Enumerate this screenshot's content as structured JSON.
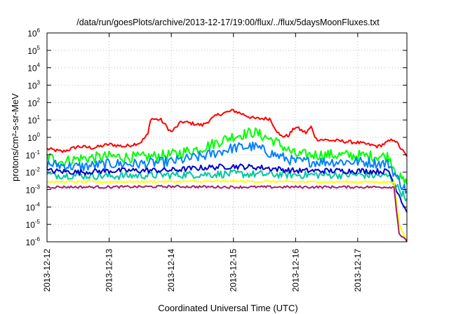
{
  "chart_data": {
    "type": "line",
    "title": "/data/run/goesPlots/archive/2013-12-17/19:00/flux/../flux/5daysMoonFluxes.txt",
    "xlabel": "Coordinated Universal Time (UTC)",
    "ylabel": "protons/cm²-s-sr-MeV",
    "x_scale": "date",
    "x_range": [
      "2013-12-12",
      "2013-12-17T19:00"
    ],
    "x_ticks": [
      "2013-12-12",
      "2013-12-13",
      "2013-12-14",
      "2013-12-15",
      "2013-12-16",
      "2013-12-17"
    ],
    "y_scale": "log",
    "y_range": [
      1e-06,
      1000000.0
    ],
    "y_ticks": [
      -6,
      -5,
      -4,
      -3,
      -2,
      -1,
      0,
      1,
      2,
      3,
      4,
      5,
      6
    ],
    "y_tick_base": "10",
    "grid": true,
    "grid_style": "dotted",
    "series": [
      {
        "color": "#ff0000",
        "x": [
          "2013-12-12T00:00",
          "2013-12-12T06:00",
          "2013-12-12T12:00",
          "2013-12-12T18:00",
          "2013-12-13T00:00",
          "2013-12-13T06:00",
          "2013-12-13T12:00",
          "2013-12-13T15:00",
          "2013-12-13T16:00",
          "2013-12-13T20:00",
          "2013-12-14T00:00",
          "2013-12-14T04:00",
          "2013-12-14T12:00",
          "2013-12-14T18:00",
          "2013-12-15T00:00",
          "2013-12-15T08:00",
          "2013-12-15T14:00",
          "2013-12-15T18:00",
          "2013-12-15T21:00",
          "2013-12-16T00:00",
          "2013-12-16T04:00",
          "2013-12-16T06:00",
          "2013-12-16T08:00",
          "2013-12-16T12:00",
          "2013-12-16T18:00",
          "2013-12-17T00:00",
          "2013-12-17T08:00",
          "2013-12-17T14:00",
          "2013-12-17T19:00"
        ],
        "y": [
          0.22,
          0.15,
          0.3,
          0.25,
          0.4,
          0.3,
          0.5,
          1.5,
          12,
          10,
          2,
          8,
          5,
          20,
          35,
          12,
          12,
          1.2,
          1.2,
          4,
          1.8,
          4,
          0.8,
          0.7,
          0.6,
          0.5,
          0.3,
          0.8,
          0.08
        ]
      },
      {
        "color": "#00ff00",
        "x": [
          "2013-12-12T00:00",
          "2013-12-12T06:00",
          "2013-12-12T12:00",
          "2013-12-13T00:00",
          "2013-12-13T12:00",
          "2013-12-14T00:00",
          "2013-12-14T12:00",
          "2013-12-15T00:00",
          "2013-12-15T08:00",
          "2013-12-15T16:00",
          "2013-12-16T00:00",
          "2013-12-16T12:00",
          "2013-12-17T00:00",
          "2013-12-17T12:00",
          "2013-12-17T16:00",
          "2013-12-17T19:00"
        ],
        "y": [
          0.08,
          0.04,
          0.06,
          0.08,
          0.07,
          0.1,
          0.25,
          1.2,
          2,
          0.6,
          0.1,
          0.1,
          0.09,
          0.08,
          0.005,
          0.002
        ]
      },
      {
        "color": "#0080ff",
        "x": [
          "2013-12-12T00:00",
          "2013-12-12T12:00",
          "2013-12-13T00:00",
          "2013-12-13T12:00",
          "2013-12-14T00:00",
          "2013-12-14T12:00",
          "2013-12-15T00:00",
          "2013-12-15T08:00",
          "2013-12-15T16:00",
          "2013-12-16T00:00",
          "2013-12-16T12:00",
          "2013-12-17T00:00",
          "2013-12-17T12:00",
          "2013-12-17T16:00",
          "2013-12-17T19:00"
        ],
        "y": [
          0.03,
          0.02,
          0.03,
          0.03,
          0.04,
          0.08,
          0.25,
          0.3,
          0.1,
          0.04,
          0.04,
          0.04,
          0.03,
          0.003,
          0.0008
        ]
      },
      {
        "color": "#00c8a0",
        "x": [
          "2013-12-12T00:00",
          "2013-12-13T00:00",
          "2013-12-14T00:00",
          "2013-12-15T00:00",
          "2013-12-16T00:00",
          "2013-12-17T00:00",
          "2013-12-17T12:00",
          "2013-12-17T16:00",
          "2013-12-17T19:00"
        ],
        "y": [
          0.007,
          0.006,
          0.007,
          0.008,
          0.007,
          0.007,
          0.006,
          0.001,
          0.0003
        ]
      },
      {
        "color": "#0000c8",
        "x": [
          "2013-12-12T00:00",
          "2013-12-12T12:00",
          "2013-12-13T00:00",
          "2013-12-14T00:00",
          "2013-12-14T12:00",
          "2013-12-15T00:00",
          "2013-12-15T12:00",
          "2013-12-16T00:00",
          "2013-12-17T00:00",
          "2013-12-17T12:00",
          "2013-12-17T16:00",
          "2013-12-17T19:00"
        ],
        "y": [
          0.012,
          0.01,
          0.012,
          0.013,
          0.018,
          0.022,
          0.018,
          0.012,
          0.012,
          0.011,
          0.0005,
          5e-05
        ]
      },
      {
        "color": "#ffff00",
        "x": [
          "2013-12-12T00:00",
          "2013-12-13T00:00",
          "2013-12-14T00:00",
          "2013-12-15T00:00",
          "2013-12-16T00:00",
          "2013-12-17T00:00",
          "2013-12-17T14:00",
          "2013-12-17T16:00",
          "2013-12-17T19:00"
        ],
        "y": [
          0.0028,
          0.0028,
          0.0029,
          0.003,
          0.0028,
          0.0028,
          0.0027,
          1e-05,
          1e-06
        ]
      },
      {
        "color": "#a02070",
        "x": [
          "2013-12-12T00:00",
          "2013-12-13T00:00",
          "2013-12-14T00:00",
          "2013-12-15T00:00",
          "2013-12-16T00:00",
          "2013-12-17T00:00",
          "2013-12-17T14:00",
          "2013-12-17T16:00",
          "2013-12-17T19:00"
        ],
        "y": [
          0.0014,
          0.0014,
          0.0015,
          0.0014,
          0.0014,
          0.0014,
          0.0014,
          3e-06,
          1e-06
        ]
      }
    ]
  }
}
